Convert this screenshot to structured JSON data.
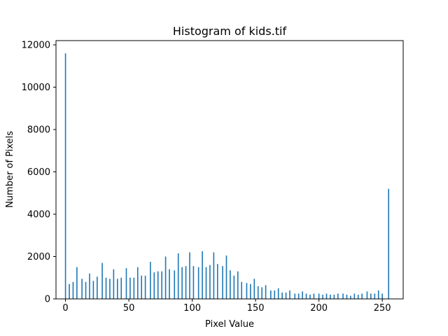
{
  "chart_data": {
    "type": "bar",
    "title": "Histogram of kids.tif",
    "xlabel": "Pixel Value",
    "ylabel": "Number of Pixels",
    "xlim": [
      -7.5,
      266.5
    ],
    "ylim": [
      0,
      12200
    ],
    "x_ticks": [
      0,
      50,
      100,
      150,
      200,
      250
    ],
    "y_ticks": [
      0,
      2000,
      4000,
      6000,
      8000,
      10000,
      12000
    ],
    "bar_color": "#1f77b4",
    "series": [
      {
        "x": [
          0,
          3,
          6,
          9,
          13,
          16,
          19,
          22,
          25,
          29,
          32,
          35,
          38,
          41,
          44,
          48,
          51,
          54,
          57,
          60,
          63,
          67,
          70,
          73,
          76,
          79,
          82,
          86,
          89,
          92,
          95,
          98,
          101,
          105,
          108,
          111,
          114,
          117,
          120,
          124,
          127,
          130,
          133,
          136,
          139,
          143,
          146,
          149,
          152,
          155,
          158,
          162,
          165,
          168,
          171,
          174,
          177,
          181,
          184,
          187,
          190,
          193,
          196,
          200,
          203,
          206,
          209,
          212,
          215,
          219,
          222,
          225,
          228,
          231,
          234,
          238,
          241,
          244,
          247,
          250,
          253,
          255
        ],
        "values": [
          11600,
          700,
          800,
          1500,
          950,
          800,
          1200,
          850,
          1050,
          1700,
          1000,
          950,
          1400,
          950,
          1000,
          1450,
          1000,
          1000,
          1500,
          1100,
          1100,
          1750,
          1250,
          1300,
          1300,
          2000,
          1400,
          1350,
          2150,
          1500,
          1550,
          2200,
          1550,
          1500,
          2250,
          1500,
          1600,
          2200,
          1650,
          1550,
          2050,
          1350,
          1100,
          1300,
          800,
          750,
          700,
          950,
          600,
          550,
          650,
          400,
          400,
          500,
          300,
          300,
          400,
          250,
          250,
          350,
          250,
          200,
          250,
          250,
          200,
          250,
          200,
          200,
          250,
          250,
          200,
          150,
          250,
          200,
          250,
          350,
          250,
          250,
          400,
          250,
          0,
          5200
        ]
      }
    ]
  }
}
